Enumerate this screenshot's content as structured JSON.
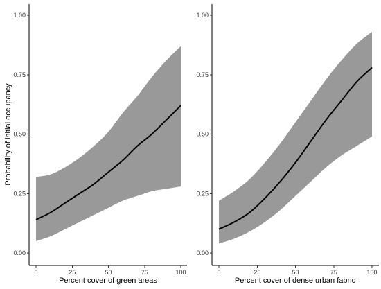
{
  "chart_data": [
    {
      "type": "line",
      "xlabel": "Percent cover of green areas",
      "ylabel": "Probability of initial occupancy",
      "xlim": [
        0,
        100
      ],
      "ylim": [
        0,
        1
      ],
      "x_ticks": [
        "0",
        "25",
        "50",
        "75",
        "100"
      ],
      "y_ticks": [
        "0.00",
        "0.25",
        "0.50",
        "0.75",
        "1.00"
      ],
      "grid": false,
      "series": [
        {
          "x": [
            0,
            10,
            20,
            30,
            40,
            50,
            60,
            70,
            80,
            90,
            100
          ],
          "y": [
            0.14,
            0.17,
            0.21,
            0.25,
            0.29,
            0.34,
            0.39,
            0.45,
            0.5,
            0.56,
            0.62
          ],
          "lower": [
            0.05,
            0.07,
            0.1,
            0.13,
            0.16,
            0.19,
            0.22,
            0.24,
            0.26,
            0.27,
            0.28
          ],
          "upper": [
            0.32,
            0.33,
            0.36,
            0.4,
            0.45,
            0.51,
            0.59,
            0.66,
            0.74,
            0.81,
            0.87
          ]
        }
      ],
      "colors": {
        "band": "#999999",
        "line": "#000000"
      }
    },
    {
      "type": "line",
      "xlabel": "Percent cover of dense urban fabric",
      "ylabel": "",
      "xlim": [
        0,
        100
      ],
      "ylim": [
        0,
        1
      ],
      "x_ticks": [
        "0",
        "25",
        "50",
        "75",
        "100"
      ],
      "y_ticks": [
        "0.00",
        "0.25",
        "0.50",
        "0.75",
        "1.00"
      ],
      "grid": false,
      "series": [
        {
          "x": [
            0,
            10,
            20,
            30,
            40,
            50,
            60,
            70,
            80,
            90,
            100
          ],
          "y": [
            0.1,
            0.13,
            0.17,
            0.23,
            0.3,
            0.38,
            0.47,
            0.56,
            0.64,
            0.72,
            0.78
          ],
          "lower": [
            0.04,
            0.06,
            0.09,
            0.13,
            0.18,
            0.24,
            0.3,
            0.36,
            0.41,
            0.45,
            0.49
          ],
          "upper": [
            0.22,
            0.26,
            0.31,
            0.38,
            0.46,
            0.55,
            0.64,
            0.73,
            0.81,
            0.88,
            0.93
          ]
        }
      ],
      "colors": {
        "band": "#999999",
        "line": "#000000"
      }
    }
  ]
}
